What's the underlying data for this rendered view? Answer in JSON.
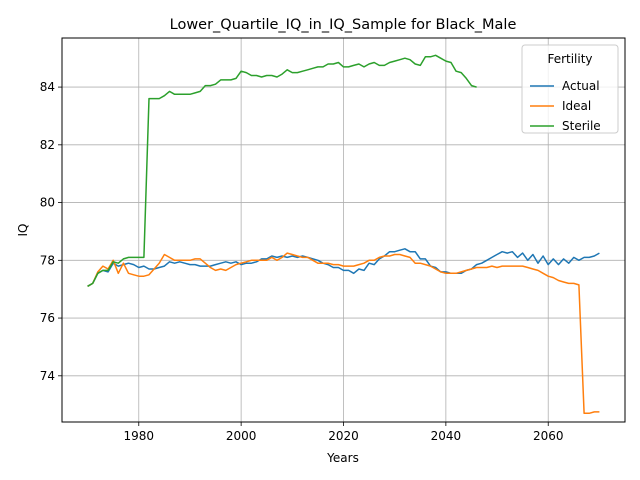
{
  "chart_data": {
    "type": "line",
    "title": "Lower_Quartile_IQ_in_IQ_Sample for Black_Male",
    "xlabel": "Years",
    "ylabel": "IQ",
    "xlim": [
      1965,
      2075
    ],
    "ylim": [
      72.4,
      85.7
    ],
    "xticks": [
      1980,
      2000,
      2020,
      2040,
      2060
    ],
    "yticks": [
      74,
      76,
      78,
      80,
      82,
      84
    ],
    "grid": true,
    "legend": {
      "title": "Fertility",
      "position": "top-right"
    },
    "series": [
      {
        "name": "Actual",
        "color": "#1f77b4",
        "x": [
          1970,
          1971,
          1972,
          1973,
          1974,
          1975,
          1976,
          1977,
          1978,
          1979,
          1980,
          1981,
          1982,
          1983,
          1984,
          1985,
          1986,
          1987,
          1988,
          1989,
          1990,
          1991,
          1992,
          1993,
          1994,
          1995,
          1996,
          1997,
          1998,
          1999,
          2000,
          2001,
          2002,
          2003,
          2004,
          2005,
          2006,
          2007,
          2008,
          2009,
          2010,
          2011,
          2012,
          2013,
          2014,
          2015,
          2016,
          2017,
          2018,
          2019,
          2020,
          2021,
          2022,
          2023,
          2024,
          2025,
          2026,
          2027,
          2028,
          2029,
          2030,
          2031,
          2032,
          2033,
          2034,
          2035,
          2036,
          2037,
          2038,
          2039,
          2040,
          2041,
          2042,
          2043,
          2044,
          2045,
          2046,
          2047,
          2048,
          2049,
          2050,
          2051,
          2052,
          2053,
          2054,
          2055,
          2056,
          2057,
          2058,
          2059,
          2060,
          2061,
          2062,
          2063,
          2064,
          2065,
          2066,
          2067,
          2068,
          2069,
          2070
        ],
        "values": [
          77.1,
          77.2,
          77.55,
          77.65,
          77.6,
          77.9,
          77.8,
          77.85,
          77.9,
          77.85,
          77.75,
          77.8,
          77.7,
          77.7,
          77.75,
          77.8,
          77.95,
          77.9,
          77.95,
          77.9,
          77.85,
          77.85,
          77.8,
          77.8,
          77.8,
          77.85,
          77.9,
          77.95,
          77.9,
          77.95,
          77.85,
          77.9,
          77.9,
          77.95,
          78.05,
          78.05,
          78.15,
          78.1,
          78.15,
          78.1,
          78.15,
          78.1,
          78.15,
          78.1,
          78.05,
          78.0,
          77.9,
          77.85,
          77.75,
          77.75,
          77.65,
          77.65,
          77.55,
          77.7,
          77.65,
          77.9,
          77.85,
          78.05,
          78.15,
          78.3,
          78.3,
          78.35,
          78.4,
          78.3,
          78.3,
          78.05,
          78.05,
          77.8,
          77.75,
          77.6,
          77.6,
          77.55,
          77.55,
          77.55,
          77.65,
          77.7,
          77.85,
          77.9,
          78.0,
          78.1,
          78.2,
          78.3,
          78.25,
          78.3,
          78.1,
          78.25,
          78.0,
          78.2,
          77.9,
          78.15,
          77.85,
          78.05,
          77.85,
          78.05,
          77.9,
          78.1,
          78.0,
          78.1,
          78.1,
          78.15,
          78.25
        ]
      },
      {
        "name": "Ideal",
        "color": "#ff7f0e",
        "x": [
          1970,
          1971,
          1972,
          1973,
          1974,
          1975,
          1976,
          1977,
          1978,
          1979,
          1980,
          1981,
          1982,
          1983,
          1984,
          1985,
          1986,
          1987,
          1988,
          1989,
          1990,
          1991,
          1992,
          1993,
          1994,
          1995,
          1996,
          1997,
          1998,
          1999,
          2000,
          2001,
          2002,
          2003,
          2004,
          2005,
          2006,
          2007,
          2008,
          2009,
          2010,
          2011,
          2012,
          2013,
          2014,
          2015,
          2016,
          2017,
          2018,
          2019,
          2020,
          2021,
          2022,
          2023,
          2024,
          2025,
          2026,
          2027,
          2028,
          2029,
          2030,
          2031,
          2032,
          2033,
          2034,
          2035,
          2036,
          2037,
          2038,
          2039,
          2040,
          2041,
          2042,
          2043,
          2044,
          2045,
          2046,
          2047,
          2048,
          2049,
          2050,
          2051,
          2052,
          2053,
          2054,
          2055,
          2056,
          2057,
          2058,
          2059,
          2060,
          2061,
          2062,
          2063,
          2064,
          2065,
          2066,
          2067,
          2068,
          2069,
          2070
        ],
        "values": [
          77.1,
          77.2,
          77.6,
          77.8,
          77.7,
          78.0,
          77.55,
          77.9,
          77.55,
          77.5,
          77.45,
          77.45,
          77.5,
          77.7,
          77.9,
          78.2,
          78.1,
          78.0,
          78.0,
          78.0,
          78.0,
          78.05,
          78.05,
          77.9,
          77.75,
          77.65,
          77.7,
          77.65,
          77.75,
          77.85,
          77.9,
          77.95,
          78.0,
          78.0,
          78.0,
          78.0,
          78.1,
          78.0,
          78.1,
          78.25,
          78.2,
          78.15,
          78.1,
          78.1,
          78.0,
          77.9,
          77.9,
          77.9,
          77.85,
          77.85,
          77.8,
          77.8,
          77.8,
          77.85,
          77.9,
          78.0,
          78.0,
          78.1,
          78.15,
          78.15,
          78.2,
          78.2,
          78.15,
          78.1,
          77.9,
          77.9,
          77.85,
          77.8,
          77.7,
          77.6,
          77.55,
          77.55,
          77.55,
          77.6,
          77.65,
          77.7,
          77.75,
          77.75,
          77.75,
          77.8,
          77.75,
          77.8,
          77.8,
          77.8,
          77.8,
          77.8,
          77.75,
          77.7,
          77.65,
          77.55,
          77.45,
          77.4,
          77.3,
          77.25,
          77.2,
          77.2,
          77.15,
          72.7,
          72.7,
          72.75,
          72.75
        ]
      },
      {
        "name": "Sterile",
        "color": "#2ca02c",
        "x": [
          1970,
          1971,
          1972,
          1973,
          1974,
          1975,
          1976,
          1977,
          1978,
          1979,
          1980,
          1981,
          1982,
          1983,
          1984,
          1985,
          1986,
          1987,
          1988,
          1989,
          1990,
          1991,
          1992,
          1993,
          1994,
          1995,
          1996,
          1997,
          1998,
          1999,
          2000,
          2001,
          2002,
          2003,
          2004,
          2005,
          2006,
          2007,
          2008,
          2009,
          2010,
          2011,
          2012,
          2013,
          2014,
          2015,
          2016,
          2017,
          2018,
          2019,
          2020,
          2021,
          2022,
          2023,
          2024,
          2025,
          2026,
          2027,
          2028,
          2029,
          2030,
          2031,
          2032,
          2033,
          2034,
          2035,
          2036,
          2037,
          2038,
          2039,
          2040,
          2041,
          2042,
          2043,
          2044,
          2045,
          2046
        ],
        "values": [
          77.1,
          77.2,
          77.55,
          77.65,
          77.65,
          77.95,
          77.9,
          78.05,
          78.1,
          78.1,
          78.1,
          78.1,
          83.6,
          83.6,
          83.6,
          83.7,
          83.85,
          83.75,
          83.75,
          83.75,
          83.75,
          83.8,
          83.85,
          84.05,
          84.05,
          84.1,
          84.25,
          84.25,
          84.25,
          84.3,
          84.55,
          84.5,
          84.4,
          84.4,
          84.35,
          84.4,
          84.4,
          84.35,
          84.45,
          84.6,
          84.5,
          84.5,
          84.55,
          84.6,
          84.65,
          84.7,
          84.7,
          84.8,
          84.8,
          84.85,
          84.7,
          84.7,
          84.75,
          84.8,
          84.7,
          84.8,
          84.85,
          84.75,
          84.75,
          84.85,
          84.9,
          84.95,
          85.0,
          84.95,
          84.8,
          84.75,
          85.05,
          85.05,
          85.1,
          85.0,
          84.9,
          84.85,
          84.55,
          84.5,
          84.3,
          84.05,
          84.0
        ]
      }
    ]
  }
}
